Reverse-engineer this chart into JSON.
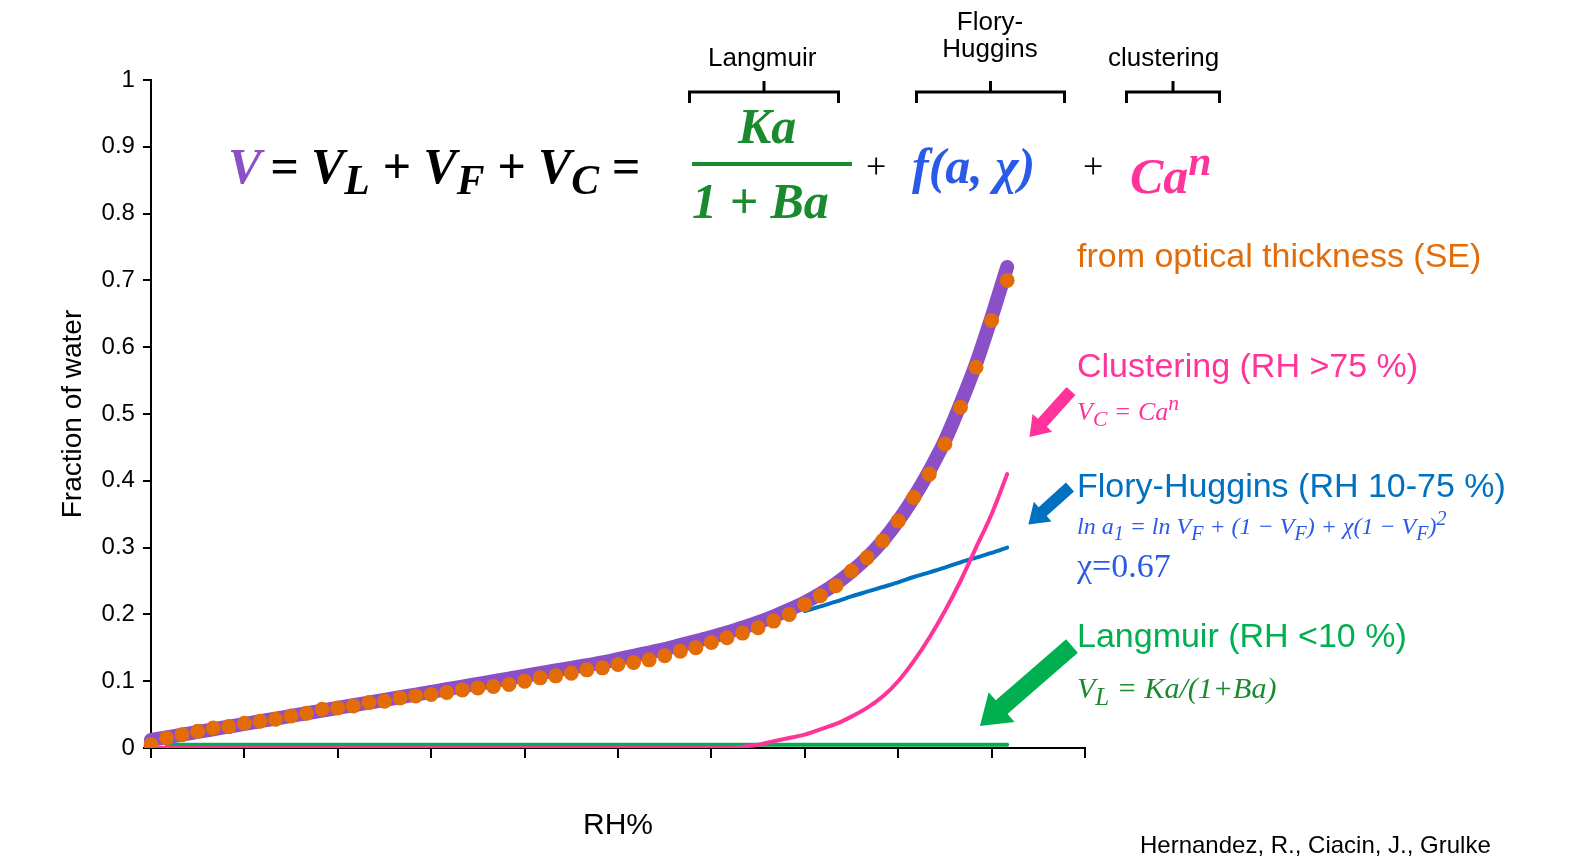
{
  "chart_data": {
    "type": "line",
    "ylabel": "Fraction of water",
    "xlabel": "RH%",
    "categories": [
      null,
      null,
      null,
      null,
      null,
      null,
      null,
      null,
      null,
      null,
      null,
      null,
      null,
      null,
      null,
      null,
      null,
      null,
      null,
      null,
      null,
      null,
      null,
      null,
      null,
      null,
      null,
      null,
      null,
      null,
      null,
      null,
      null,
      null,
      null,
      null,
      null,
      null,
      null,
      null,
      null,
      null,
      null,
      null,
      null,
      null,
      null,
      null,
      null,
      null,
      null,
      null,
      null,
      null,
      null,
      null,
      null,
      null,
      null,
      null,
      null
    ],
    "ylim": [
      0,
      1
    ],
    "yticks": [
      0,
      0.1,
      0.2,
      0.3,
      0.4,
      0.5,
      0.6,
      0.7,
      0.8,
      0.9,
      1
    ],
    "tick_labels": "y",
    "marker": "none",
    "line_style": "solid",
    "series": [
      {
        "type": "scatter",
        "marker": "circle",
        "name": "from optical thickness (SE)",
        "color": "#e36c09",
        "values": [
          0.005,
          0.015,
          0.02,
          0.025,
          0.03,
          0.032,
          0.037,
          0.04,
          0.043,
          0.048,
          0.052,
          0.058,
          0.06,
          0.063,
          0.068,
          0.07,
          0.075,
          0.078,
          0.08,
          0.083,
          0.087,
          0.09,
          0.092,
          0.095,
          0.1,
          0.105,
          0.108,
          0.112,
          0.117,
          0.12,
          0.125,
          0.128,
          0.132,
          0.138,
          0.145,
          0.15,
          0.158,
          0.165,
          0.172,
          0.18,
          0.19,
          0.2,
          0.215,
          0.228,
          0.243,
          0.265,
          0.285,
          0.31,
          0.34,
          0.375,
          0.41,
          0.455,
          0.51,
          0.57,
          0.64,
          0.7,
          null,
          null,
          null,
          null,
          null
        ]
      },
      {
        "type": "line",
        "color": "#8b4fc8",
        "values": [
          0.012,
          0.016,
          0.02,
          0.024,
          0.028,
          0.032,
          0.036,
          0.04,
          0.044,
          0.048,
          0.052,
          0.056,
          0.06,
          0.064,
          0.068,
          0.072,
          0.076,
          0.08,
          0.084,
          0.088,
          0.092,
          0.096,
          0.1,
          0.104,
          0.108,
          0.112,
          0.116,
          0.12,
          0.124,
          0.128,
          0.133,
          0.138,
          0.143,
          0.148,
          0.154,
          0.16,
          0.166,
          0.173,
          0.18,
          0.188,
          0.197,
          0.207,
          0.218,
          0.231,
          0.246,
          0.264,
          0.285,
          0.31,
          0.34,
          0.375,
          0.415,
          0.46,
          0.515,
          0.575,
          0.645,
          0.72,
          null,
          null,
          null,
          null,
          null
        ]
      },
      {
        "type": "line",
        "name": "Clustering (RH >75 %)",
        "color": "#ff3399",
        "values": [
          0,
          0,
          0,
          0,
          0,
          0,
          0,
          0,
          0,
          0,
          0,
          0,
          0,
          0,
          0,
          0,
          0,
          0,
          0,
          0,
          0,
          0,
          0,
          0,
          0,
          0,
          0,
          0,
          0,
          0,
          0,
          0,
          0,
          0,
          0,
          0,
          0,
          0,
          0.002,
          0.005,
          0.01,
          0.015,
          0.02,
          0.028,
          0.036,
          0.047,
          0.06,
          0.077,
          0.1,
          0.13,
          0.165,
          0.205,
          0.25,
          0.3,
          0.35,
          0.41,
          null,
          null,
          null,
          null,
          null
        ]
      },
      {
        "type": "line",
        "name": "Flory-Huggins (RH 10-75 %)",
        "color": "#0070c0",
        "values": [
          null,
          null,
          null,
          null,
          null,
          null,
          null,
          null,
          null,
          null,
          null,
          null,
          null,
          null,
          null,
          null,
          null,
          null,
          null,
          null,
          null,
          null,
          null,
          null,
          null,
          null,
          null,
          null,
          null,
          null,
          null,
          null,
          null,
          null,
          null,
          null,
          null,
          null,
          null,
          null,
          null,
          null,
          0.205,
          0.212,
          0.219,
          0.227,
          0.234,
          0.241,
          0.248,
          0.256,
          0.263,
          0.27,
          0.278,
          0.285,
          0.292,
          0.3,
          null,
          null,
          null,
          null,
          null
        ]
      },
      {
        "type": "line",
        "name": "Langmuir (RH <10 %)",
        "color": "#00b050",
        "values": [
          null,
          0.005,
          0.005,
          0.005,
          0.005,
          0.005,
          0.005,
          0.005,
          0.005,
          0.005,
          0.005,
          0.005,
          0.005,
          0.005,
          0.005,
          0.005,
          0.005,
          0.005,
          0.005,
          0.005,
          0.005,
          0.005,
          0.005,
          0.005,
          0.005,
          0.005,
          0.005,
          0.005,
          0.005,
          0.005,
          0.005,
          0.005,
          0.005,
          0.005,
          0.005,
          0.005,
          0.005,
          0.005,
          0.005,
          0.005,
          0.005,
          0.005,
          0.005,
          0.005,
          0.005,
          0.005,
          0.005,
          0.005,
          0.005,
          0.005,
          0.005,
          0.005,
          0.005,
          0.005,
          0.005,
          0.005,
          null,
          null,
          null,
          null,
          null
        ]
      }
    ],
    "annotations": [
      "V",
      "= V$_{L}$ + V$_{F}$ + V$_{C}$ =",
      "Ka",
      "1 + Ba",
      "+",
      "f(a, χ)",
      "+",
      "Ca$^{n}$",
      "Langmuir",
      "Flory-Huggins",
      "clustering",
      "V$_{C}$ = Ca$^{n}$",
      "ln a$_{1}$ = ln V$_{F}$ + (1 − V$_{F}$) + χ(1 − V$_{F}$)$^{2}$",
      "χ=0.67",
      "V$_{L}$ = Ka/(1+Ba)",
      "Hernandez, R., Ciacin, J., Grulke"
    ]
  }
}
